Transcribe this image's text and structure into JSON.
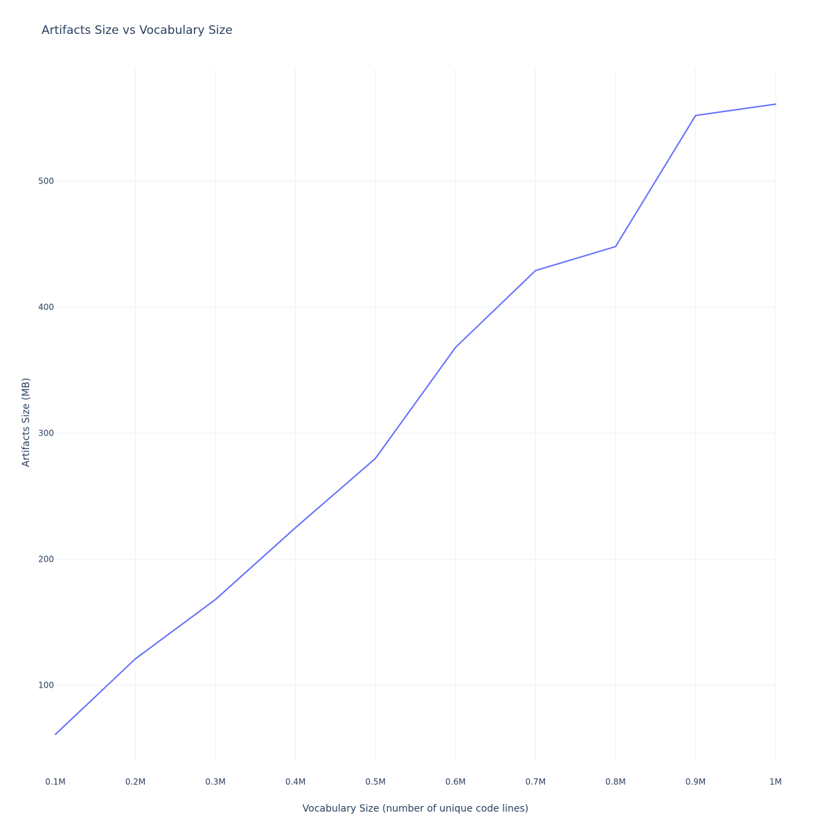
{
  "chart_data": {
    "type": "line",
    "title": "Artifacts Size vs Vocabulary Size",
    "xlabel": "Vocabulary Size (number of unique code lines)",
    "ylabel": "Artifacts Size (MB)",
    "x": [
      100000,
      200000,
      300000,
      400000,
      500000,
      600000,
      700000,
      800000,
      900000,
      1000000
    ],
    "series": [
      {
        "values": [
          61,
          121,
          168,
          225,
          280,
          368,
          429,
          448,
          552,
          561
        ],
        "color": "#636efa"
      }
    ],
    "x_ticks": [
      {
        "value": 100000,
        "label": "0.1M"
      },
      {
        "value": 200000,
        "label": "0.2M"
      },
      {
        "value": 300000,
        "label": "0.3M"
      },
      {
        "value": 400000,
        "label": "0.4M"
      },
      {
        "value": 500000,
        "label": "0.5M"
      },
      {
        "value": 600000,
        "label": "0.6M"
      },
      {
        "value": 700000,
        "label": "0.7M"
      },
      {
        "value": 800000,
        "label": "0.8M"
      },
      {
        "value": 900000,
        "label": "0.9M"
      },
      {
        "value": 1000000,
        "label": "1M"
      }
    ],
    "y_ticks": [
      {
        "value": 100,
        "label": "100"
      },
      {
        "value": 200,
        "label": "200"
      },
      {
        "value": 300,
        "label": "300"
      },
      {
        "value": 400,
        "label": "400"
      },
      {
        "value": 500,
        "label": "500"
      }
    ],
    "xlim": [
      100000,
      1000000
    ],
    "ylim": [
      39.3,
      588.7
    ],
    "grid": true,
    "legend": "none"
  }
}
